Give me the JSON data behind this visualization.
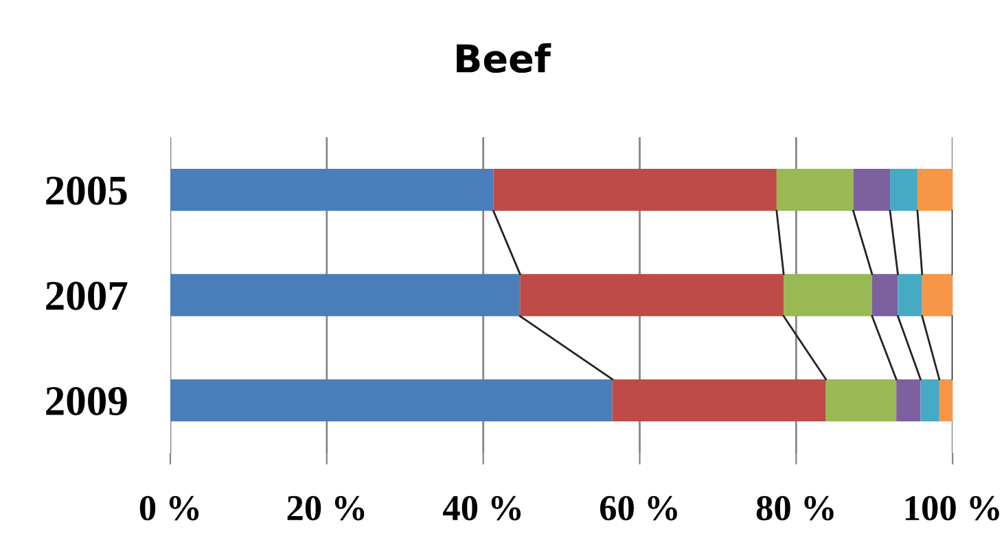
{
  "chart_data": {
    "type": "bar",
    "title": "Beef",
    "orientation": "horizontal",
    "stacked": true,
    "categories": [
      "2005",
      "2007",
      "2009"
    ],
    "series": [
      {
        "color": "#4a7ebb",
        "values": [
          41.3,
          44.7,
          56.5
        ]
      },
      {
        "color": "#be4b48",
        "values": [
          36.2,
          33.7,
          27.3
        ]
      },
      {
        "color": "#98b954",
        "values": [
          9.8,
          11.3,
          9.0
        ]
      },
      {
        "color": "#7d60a0",
        "values": [
          4.7,
          3.3,
          3.1
        ]
      },
      {
        "color": "#46aac5",
        "values": [
          3.5,
          3.1,
          2.4
        ]
      },
      {
        "color": "#f79646",
        "values": [
          4.5,
          3.9,
          1.7
        ]
      }
    ],
    "xlim": [
      0,
      100
    ],
    "xticks": [
      {
        "value": 0,
        "label": "0 %"
      },
      {
        "value": 20,
        "label": "20 %"
      },
      {
        "value": 40,
        "label": "40 %"
      },
      {
        "value": 60,
        "label": "60 %"
      },
      {
        "value": 80,
        "label": "80 %"
      },
      {
        "value": 100,
        "label": "100 %"
      }
    ],
    "grid": "x",
    "legend": false
  }
}
